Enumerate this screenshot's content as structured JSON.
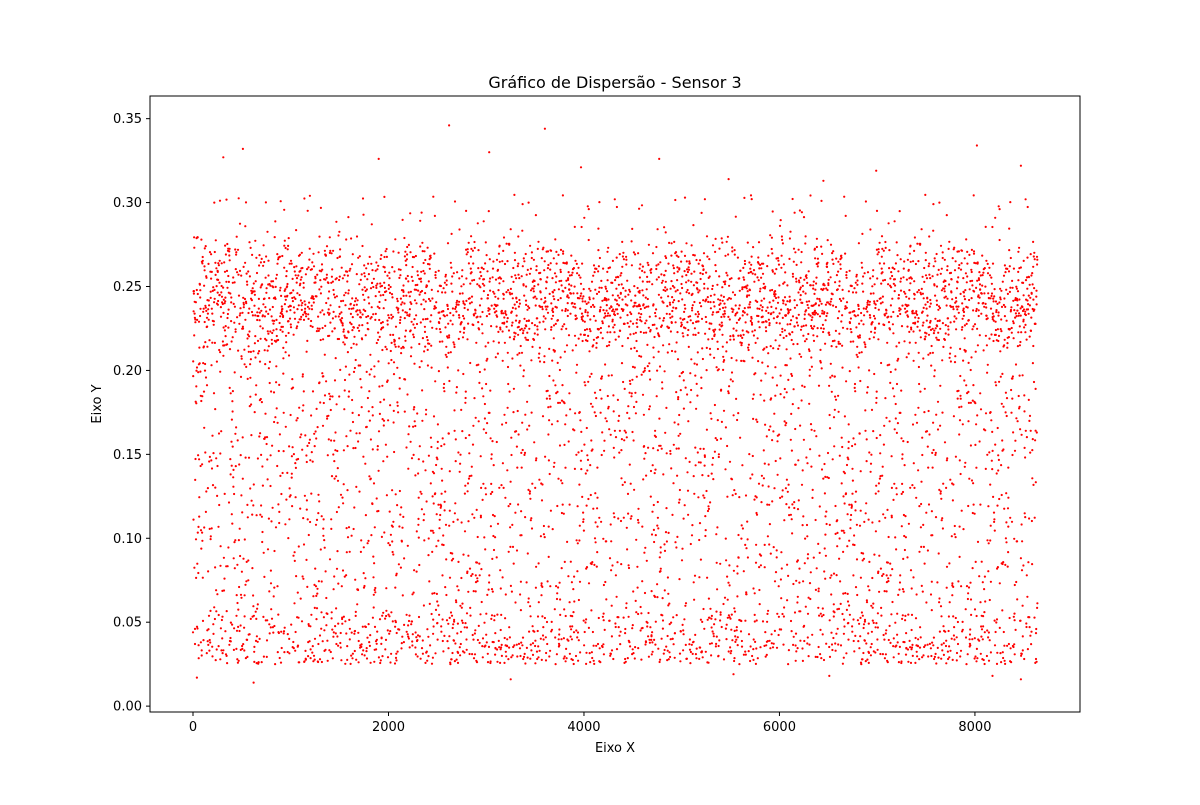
{
  "chart_data": {
    "type": "scatter",
    "title": "Gráfico de Dispersão - Sensor 3",
    "xlabel": "Eixo X",
    "ylabel": "Eixo Y",
    "xlim": [
      -440,
      9075
    ],
    "ylim": [
      -0.0035,
      0.3635
    ],
    "xticks": [
      0,
      2000,
      4000,
      6000,
      8000
    ],
    "xtick_labels": [
      "0",
      "2000",
      "4000",
      "6000",
      "8000"
    ],
    "yticks": [
      0.0,
      0.05,
      0.1,
      0.15,
      0.2,
      0.25,
      0.3,
      0.35
    ],
    "ytick_labels": [
      "0.00",
      "0.05",
      "0.10",
      "0.15",
      "0.20",
      "0.25",
      "0.30",
      "0.35"
    ],
    "grid": false,
    "legend": "none",
    "series": [
      {
        "color": "#ff0000",
        "marker": "dot",
        "x_range": [
          0,
          8640
        ],
        "y_range": [
          0.013,
          0.347
        ],
        "dense_band": [
          0.22,
          0.26
        ],
        "sample_points": [
          {
            "x": 2620,
            "y": 0.346
          },
          {
            "x": 3600,
            "y": 0.344
          },
          {
            "x": 8020,
            "y": 0.334
          },
          {
            "x": 510,
            "y": 0.332
          },
          {
            "x": 3030,
            "y": 0.33
          },
          {
            "x": 310,
            "y": 0.327
          },
          {
            "x": 4770,
            "y": 0.326
          },
          {
            "x": 1900,
            "y": 0.326
          },
          {
            "x": 8470,
            "y": 0.322
          },
          {
            "x": 3970,
            "y": 0.321
          },
          {
            "x": 6990,
            "y": 0.319
          },
          {
            "x": 5480,
            "y": 0.314
          },
          {
            "x": 6450,
            "y": 0.313
          },
          {
            "x": 620,
            "y": 0.014
          },
          {
            "x": 3250,
            "y": 0.016
          },
          {
            "x": 8470,
            "y": 0.016
          },
          {
            "x": 40,
            "y": 0.017
          },
          {
            "x": 6510,
            "y": 0.018
          },
          {
            "x": 5530,
            "y": 0.019
          },
          {
            "x": 8180,
            "y": 0.018
          }
        ]
      }
    ]
  }
}
